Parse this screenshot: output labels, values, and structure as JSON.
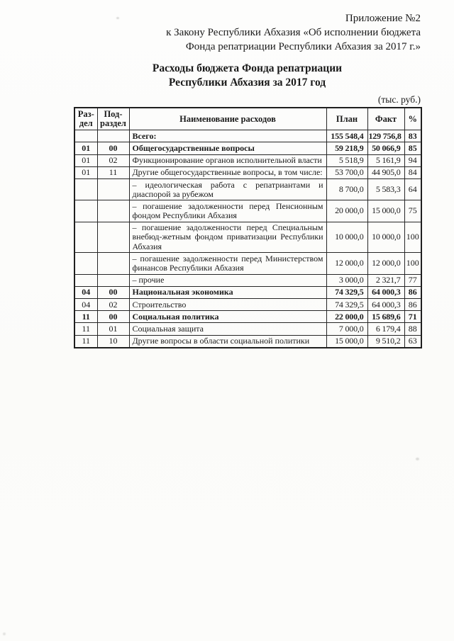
{
  "annotation": {
    "line1": "Приложение №2",
    "line2": "к Закону Республики Абхазия «Об исполнении бюджета",
    "line3": "Фонда репатриации Республики Абхазия за 2017 г.»"
  },
  "title": {
    "line1": "Расходы бюджета Фонда репатриации",
    "line2": "Республики Абхазия за 2017 год"
  },
  "units_note": "(тыс. руб.)",
  "table": {
    "columns": [
      {
        "key": "razdel",
        "label": "Раз-\nдел"
      },
      {
        "key": "podrazdel",
        "label": "Под-\nраздел"
      },
      {
        "key": "name",
        "label": "Наименование расходов"
      },
      {
        "key": "plan",
        "label": "План"
      },
      {
        "key": "fakt",
        "label": "Факт"
      },
      {
        "key": "pct",
        "label": "%"
      }
    ],
    "rows": [
      {
        "razdel": "",
        "podrazdel": "",
        "name": "Всего:",
        "plan": "155 548,4",
        "fakt": "129 756,8",
        "pct": "83",
        "bold": true
      },
      {
        "razdel": "01",
        "podrazdel": "00",
        "name": "Общегосударственные вопросы",
        "plan": "59 218,9",
        "fakt": "50 066,9",
        "pct": "85",
        "bold": true
      },
      {
        "razdel": "01",
        "podrazdel": "02",
        "name": "Функционирование органов исполнительной власти",
        "plan": "5 518,9",
        "fakt": "5 161,9",
        "pct": "94"
      },
      {
        "razdel": "01",
        "podrazdel": "11",
        "name": "Другие общегосударственные вопросы, в том числе:",
        "plan": "53 700,0",
        "fakt": "44 905,0",
        "pct": "84"
      },
      {
        "razdel": "",
        "podrazdel": "",
        "name": "– идеологическая работа с репатриантами и диаспорой за рубежом",
        "plan": "8 700,0",
        "fakt": "5 583,3",
        "pct": "64",
        "justify": true
      },
      {
        "razdel": "",
        "podrazdel": "",
        "name": "– погашение задолженности перед Пенсионным фондом Республики Абхазия",
        "plan": "20 000,0",
        "fakt": "15 000,0",
        "pct": "75",
        "justify": true
      },
      {
        "razdel": "",
        "podrazdel": "",
        "name": "– погашение задолженности перед Специальным внебюд-жетным фондом приватизации Республики Абхазия",
        "plan": "10 000,0",
        "fakt": "10 000,0",
        "pct": "100",
        "justify": true
      },
      {
        "razdel": "",
        "podrazdel": "",
        "name": "– погашение задолженности перед Министерством финансов Республики Абхазия",
        "plan": "12 000,0",
        "fakt": "12 000,0",
        "pct": "100",
        "justify": true
      },
      {
        "razdel": "",
        "podrazdel": "",
        "name": "– прочие",
        "plan": "3 000,0",
        "fakt": "2 321,7",
        "pct": "77"
      },
      {
        "razdel": "04",
        "podrazdel": "00",
        "name": "Национальная экономика",
        "plan": "74 329,5",
        "fakt": "64 000,3",
        "pct": "86",
        "bold": true
      },
      {
        "razdel": "04",
        "podrazdel": "02",
        "name": "Строительство",
        "plan": "74 329,5",
        "fakt": "64 000,3",
        "pct": "86"
      },
      {
        "razdel": "11",
        "podrazdel": "00",
        "name": "Социальная политика",
        "plan": "22 000,0",
        "fakt": "15 689,6",
        "pct": "71",
        "bold": true
      },
      {
        "razdel": "11",
        "podrazdel": "01",
        "name": "Социальная защита",
        "plan": "7 000,0",
        "fakt": "6 179,4",
        "pct": "88"
      },
      {
        "razdel": "11",
        "podrazdel": "10",
        "name": "Другие вопросы в области социальной политики",
        "plan": "15 000,0",
        "fakt": "9 510,2",
        "pct": "63"
      }
    ]
  }
}
